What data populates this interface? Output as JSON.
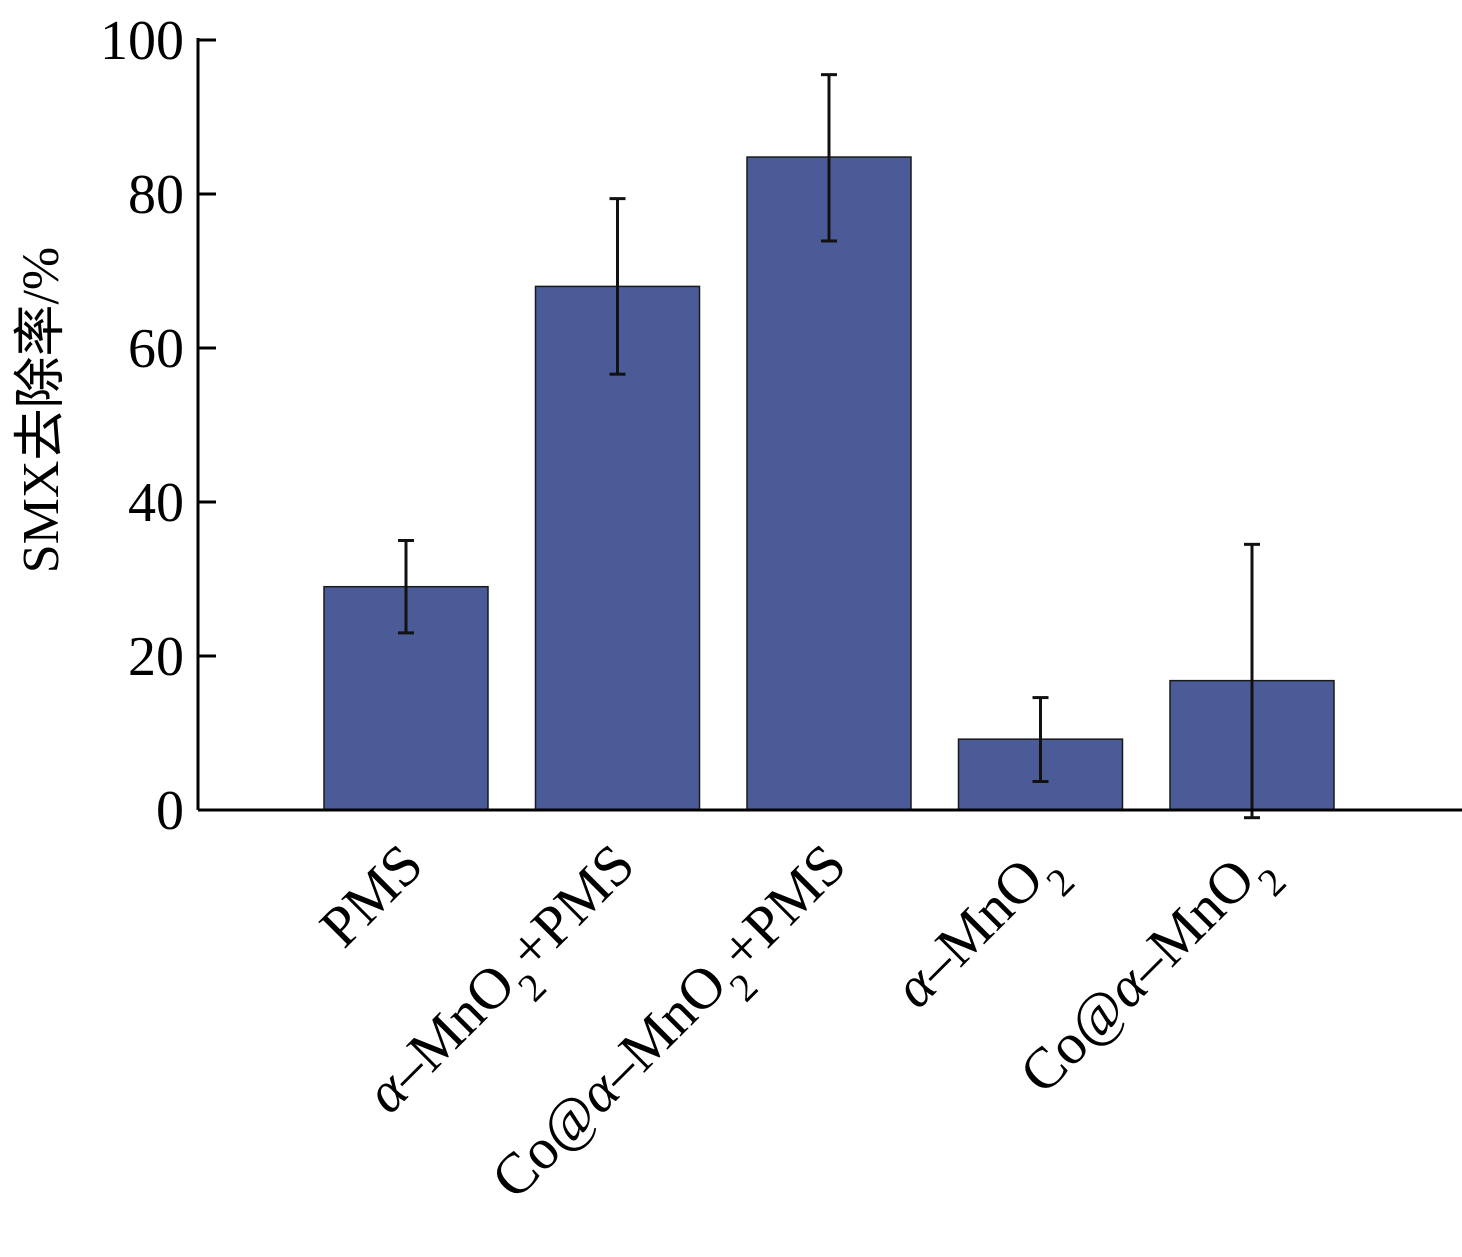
{
  "chart_data": {
    "type": "bar",
    "title": "",
    "xlabel": "",
    "ylabel": "SMX去除率/%",
    "ylim": [
      0,
      100
    ],
    "yticks": [
      0,
      20,
      40,
      60,
      80,
      100
    ],
    "ytick_labels": [
      "0",
      "20",
      "40",
      "60",
      "80",
      "100"
    ],
    "grid": false,
    "legend": "none",
    "bar_color": "#4a5b98",
    "categories": [
      {
        "prefix": "",
        "alpha": "",
        "main": "PMS",
        "sub": "",
        "suffix": ""
      },
      {
        "prefix": "",
        "alpha": "α",
        "main": "–MnO",
        "sub": "2",
        "suffix": "+PMS"
      },
      {
        "prefix": "Co@",
        "alpha": "α",
        "main": "–MnO",
        "sub": "2",
        "suffix": "+PMS"
      },
      {
        "prefix": "",
        "alpha": "α",
        "main": "–MnO",
        "sub": "2",
        "suffix": ""
      },
      {
        "prefix": "Co@",
        "alpha": "α",
        "main": "–MnO",
        "sub": "2",
        "suffix": ""
      }
    ],
    "values": [
      29,
      68,
      84.8,
      9.2,
      16.8
    ],
    "error_low": [
      23,
      56.6,
      73.9,
      3.7,
      -1
    ],
    "error_high": [
      35,
      79.4,
      95.5,
      14.6,
      34.5
    ]
  }
}
